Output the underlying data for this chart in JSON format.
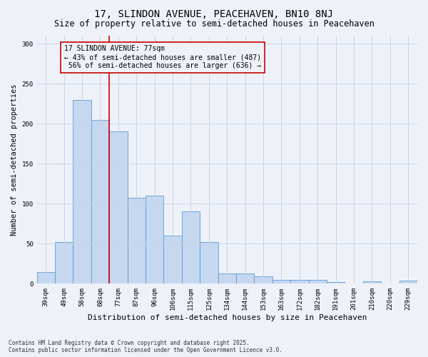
{
  "title": "17, SLINDON AVENUE, PEACEHAVEN, BN10 8NJ",
  "subtitle": "Size of property relative to semi-detached houses in Peacehaven",
  "xlabel": "Distribution of semi-detached houses by size in Peacehaven",
  "ylabel": "Number of semi-detached properties",
  "categories": [
    "39sqm",
    "49sqm",
    "58sqm",
    "68sqm",
    "77sqm",
    "87sqm",
    "96sqm",
    "106sqm",
    "115sqm",
    "125sqm",
    "134sqm",
    "144sqm",
    "153sqm",
    "163sqm",
    "172sqm",
    "182sqm",
    "191sqm",
    "201sqm",
    "210sqm",
    "220sqm",
    "229sqm"
  ],
  "values": [
    15,
    52,
    230,
    205,
    190,
    107,
    110,
    60,
    90,
    52,
    13,
    13,
    9,
    5,
    5,
    5,
    2,
    0,
    3,
    0,
    4
  ],
  "bar_color": "#c5d8f0",
  "bar_edge_color": "#5b9bd5",
  "property_label": "17 SLINDON AVENUE: 77sqm",
  "smaller_pct": 43,
  "smaller_count": 487,
  "larger_pct": 56,
  "larger_count": 636,
  "vline_color": "#cc0000",
  "vline_x_index": 3.5,
  "annotation_box_color": "#cc0000",
  "grid_color": "#c8d4e8",
  "background_color": "#eef2f8",
  "footnote1": "Contains HM Land Registry data © Crown copyright and database right 2025.",
  "footnote2": "Contains public sector information licensed under the Open Government Licence v3.0.",
  "ylim": [
    0,
    310
  ],
  "title_fontsize": 10,
  "subtitle_fontsize": 8.5,
  "xlabel_fontsize": 8,
  "ylabel_fontsize": 7.5,
  "tick_fontsize": 6.5,
  "annotation_fontsize": 7,
  "footnote_fontsize": 5.5
}
